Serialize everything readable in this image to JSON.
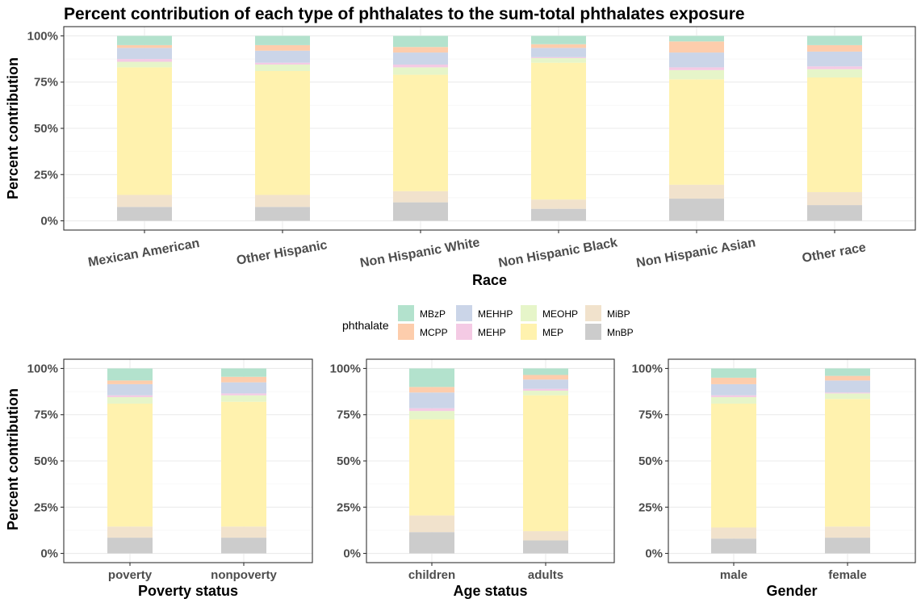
{
  "title": "Percent contribution of each type of phthalates to the sum-total phthalates exposure",
  "legend": {
    "title": "phthalate",
    "entries": [
      {
        "label": "MBzP",
        "color": "#b3e2cd"
      },
      {
        "label": "MCPP",
        "color": "#fdcdac"
      },
      {
        "label": "MEHHP",
        "color": "#cbd5e8"
      },
      {
        "label": "MEHP",
        "color": "#f4cae4"
      },
      {
        "label": "MEOHP",
        "color": "#e6f5c9"
      },
      {
        "label": "MEP",
        "color": "#fff2ae"
      },
      {
        "label": "MiBP",
        "color": "#f1e2cc"
      },
      {
        "label": "MnBP",
        "color": "#cccccc"
      }
    ]
  },
  "chart_data": [
    {
      "type": "bar",
      "stacked": true,
      "xlabel": "Race",
      "ylabel": "Percent contribution",
      "ylim": [
        0,
        100
      ],
      "yticks": [
        "0%",
        "25%",
        "50%",
        "75%",
        "100%"
      ],
      "categories": [
        "Mexican American",
        "Other Hispanic",
        "Non Hispanic White",
        "Non Hispanic Black",
        "Non Hispanic Asian",
        "Other race"
      ],
      "series": [
        {
          "name": "MnBP",
          "values": [
            7.5,
            7.5,
            10.0,
            6.5,
            12.0,
            8.5
          ]
        },
        {
          "name": "MiBP",
          "values": [
            6.5,
            6.5,
            6.0,
            5.0,
            7.5,
            7.0
          ]
        },
        {
          "name": "MEP",
          "values": [
            69.0,
            67.0,
            63.0,
            74.0,
            57.0,
            62.0
          ]
        },
        {
          "name": "MEOHP",
          "values": [
            3.0,
            3.5,
            4.0,
            2.5,
            5.0,
            4.5
          ]
        },
        {
          "name": "MEHP",
          "values": [
            1.5,
            1.0,
            1.5,
            0.5,
            1.5,
            1.5
          ]
        },
        {
          "name": "MEHHP",
          "values": [
            6.0,
            6.5,
            6.5,
            5.0,
            8.0,
            8.0
          ]
        },
        {
          "name": "MCPP",
          "values": [
            1.5,
            3.0,
            3.0,
            2.0,
            6.0,
            3.5
          ]
        },
        {
          "name": "MBzP",
          "values": [
            5.0,
            5.0,
            6.0,
            4.5,
            3.0,
            5.0
          ]
        }
      ]
    },
    {
      "type": "bar",
      "stacked": true,
      "xlabel": "Poverty status",
      "ylabel": "Percent contribution",
      "ylim": [
        0,
        100
      ],
      "yticks": [
        "0%",
        "25%",
        "50%",
        "75%",
        "100%"
      ],
      "categories": [
        "poverty",
        "nonpoverty"
      ],
      "series": [
        {
          "name": "MnBP",
          "values": [
            8.5,
            8.5
          ]
        },
        {
          "name": "MiBP",
          "values": [
            6.0,
            6.0
          ]
        },
        {
          "name": "MEP",
          "values": [
            66.5,
            67.5
          ]
        },
        {
          "name": "MEOHP",
          "values": [
            3.5,
            3.5
          ]
        },
        {
          "name": "MEHP",
          "values": [
            1.0,
            1.0
          ]
        },
        {
          "name": "MEHHP",
          "values": [
            6.0,
            6.0
          ]
        },
        {
          "name": "MCPP",
          "values": [
            2.0,
            3.0
          ]
        },
        {
          "name": "MBzP",
          "values": [
            6.5,
            4.5
          ]
        }
      ]
    },
    {
      "type": "bar",
      "stacked": true,
      "xlabel": "Age status",
      "ylabel": "",
      "ylim": [
        0,
        100
      ],
      "yticks": [
        "0%",
        "25%",
        "50%",
        "75%",
        "100%"
      ],
      "categories": [
        "children",
        "adults"
      ],
      "series": [
        {
          "name": "MnBP",
          "values": [
            11.5,
            7.0
          ]
        },
        {
          "name": "MiBP",
          "values": [
            9.0,
            5.0
          ]
        },
        {
          "name": "MEP",
          "values": [
            52.0,
            73.5
          ]
        },
        {
          "name": "MEOHP",
          "values": [
            4.5,
            2.5
          ]
        },
        {
          "name": "MEHP",
          "values": [
            1.5,
            1.0
          ]
        },
        {
          "name": "MEHHP",
          "values": [
            8.5,
            5.0
          ]
        },
        {
          "name": "MCPP",
          "values": [
            3.0,
            2.5
          ]
        },
        {
          "name": "MBzP",
          "values": [
            10.0,
            3.5
          ]
        }
      ]
    },
    {
      "type": "bar",
      "stacked": true,
      "xlabel": "Gender",
      "ylabel": "",
      "ylim": [
        0,
        100
      ],
      "yticks": [
        "0%",
        "25%",
        "50%",
        "75%",
        "100%"
      ],
      "categories": [
        "male",
        "female"
      ],
      "series": [
        {
          "name": "MnBP",
          "values": [
            8.0,
            8.5
          ]
        },
        {
          "name": "MiBP",
          "values": [
            6.0,
            6.0
          ]
        },
        {
          "name": "MEP",
          "values": [
            67.0,
            69.0
          ]
        },
        {
          "name": "MEOHP",
          "values": [
            3.5,
            3.0
          ]
        },
        {
          "name": "MEHP",
          "values": [
            1.0,
            0.5
          ]
        },
        {
          "name": "MEHHP",
          "values": [
            6.0,
            6.5
          ]
        },
        {
          "name": "MCPP",
          "values": [
            3.5,
            2.5
          ]
        },
        {
          "name": "MBzP",
          "values": [
            5.0,
            4.0
          ]
        }
      ]
    }
  ]
}
